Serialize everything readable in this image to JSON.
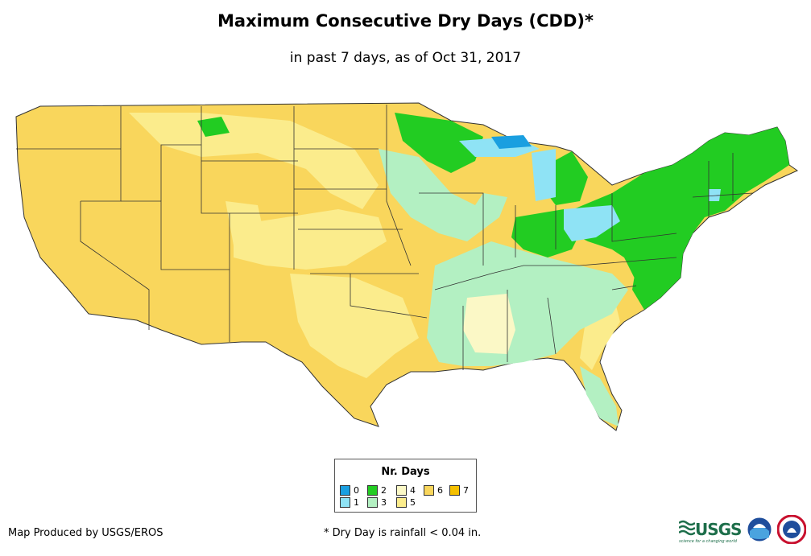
{
  "title": "Maximum Consecutive Dry Days (CDD)*",
  "subtitle": "in past 7 days, as of Oct 31, 2017",
  "legend": {
    "title": "Nr. Days",
    "items": [
      {
        "label": "0",
        "color": "#1a9fe0"
      },
      {
        "label": "1",
        "color": "#8fe3f5"
      },
      {
        "label": "2",
        "color": "#22cc22"
      },
      {
        "label": "3",
        "color": "#b3f0c2"
      },
      {
        "label": "4",
        "color": "#fbf8c6"
      },
      {
        "label": "5",
        "color": "#fbec8c"
      },
      {
        "label": "6",
        "color": "#f9d65c"
      },
      {
        "label": "7",
        "color": "#f5c000"
      }
    ]
  },
  "credit": "Map Produced by USGS/EROS",
  "footnote": "* Dry Day is rainfall < 0.04 in.",
  "logos": {
    "usgs": "USGS",
    "usgs_tagline": "science for a changing world"
  }
}
